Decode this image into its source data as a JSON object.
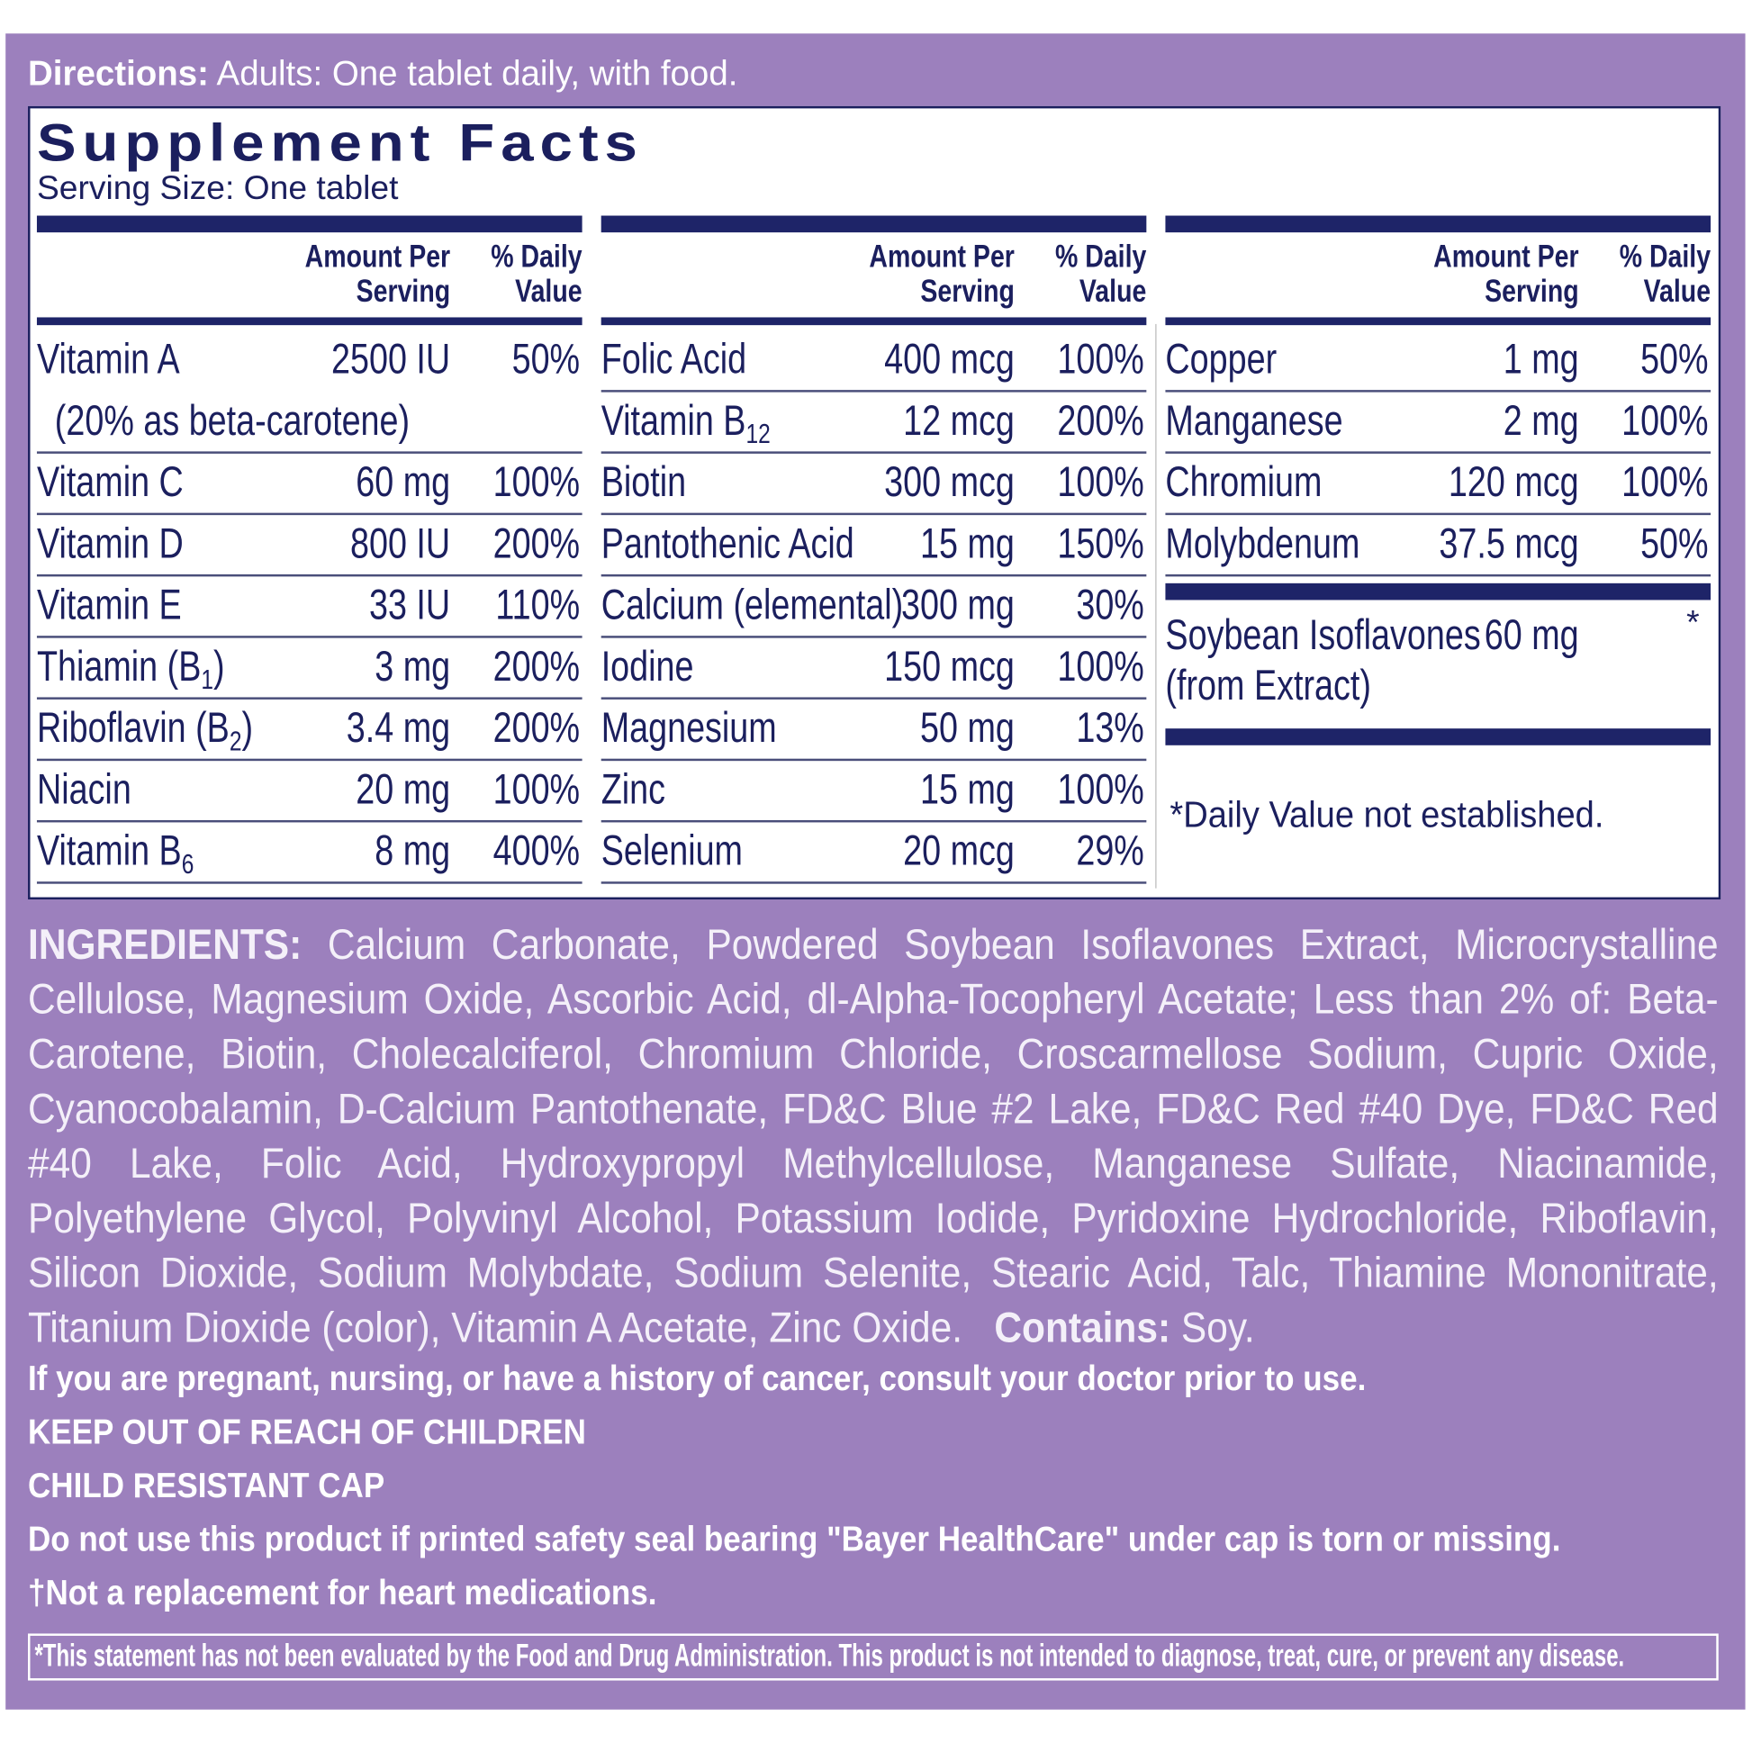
{
  "directions": {
    "label": "Directions:",
    "text": "Adults: One tablet daily, with food."
  },
  "facts": {
    "title": "Supplement Facts",
    "serving_size": "Serving Size: One tablet",
    "columns": [
      {
        "header": {
          "amount": "Amount Per Serving",
          "daily_value": "% Daily Value"
        },
        "rows": [
          {
            "name": "Vitamin A",
            "amount": "2500 IU",
            "daily_value": "50%",
            "note": "(20% as beta-carotene)"
          },
          {
            "name": "Vitamin C",
            "amount": "60 mg",
            "daily_value": "100%"
          },
          {
            "name": "Vitamin D",
            "amount": "800 IU",
            "daily_value": "200%"
          },
          {
            "name": "Vitamin E",
            "amount": "33 IU",
            "daily_value": "110%"
          },
          {
            "name": "Thiamin (B",
            "sub": "1",
            "tail": ")",
            "amount": "3 mg",
            "daily_value": "200%"
          },
          {
            "name": "Riboflavin (B",
            "sub": "2",
            "tail": ")",
            "amount": "3.4 mg",
            "daily_value": "200%"
          },
          {
            "name": "Niacin",
            "amount": "20 mg",
            "daily_value": "100%"
          },
          {
            "name": "Vitamin B",
            "sub": "6",
            "amount": "8 mg",
            "daily_value": "400%"
          }
        ]
      },
      {
        "header": {
          "amount": "Amount Per Serving",
          "daily_value": "% Daily Value"
        },
        "rows": [
          {
            "name": "Folic Acid",
            "amount": "400 mcg",
            "daily_value": "100%"
          },
          {
            "name": "Vitamin B",
            "sub": "12",
            "amount": "12 mcg",
            "daily_value": "200%"
          },
          {
            "name": "Biotin",
            "amount": "300 mcg",
            "daily_value": "100%"
          },
          {
            "name": "Pantothenic Acid",
            "amount": "15 mg",
            "daily_value": "150%"
          },
          {
            "name": "Calcium (elemental)",
            "amount": "300 mg",
            "daily_value": "30%"
          },
          {
            "name": "Iodine",
            "amount": "150 mcg",
            "daily_value": "100%"
          },
          {
            "name": "Magnesium",
            "amount": "50 mg",
            "daily_value": "13%"
          },
          {
            "name": "Zinc",
            "amount": "15 mg",
            "daily_value": "100%"
          },
          {
            "name": "Selenium",
            "amount": "20 mcg",
            "daily_value": "29%"
          }
        ]
      },
      {
        "header": {
          "amount": "Amount Per Serving",
          "daily_value": "% Daily Value"
        },
        "rows": [
          {
            "name": "Copper",
            "amount": "1 mg",
            "daily_value": "50%"
          },
          {
            "name": "Manganese",
            "amount": "2 mg",
            "daily_value": "100%"
          },
          {
            "name": "Chromium",
            "amount": "120 mcg",
            "daily_value": "100%"
          },
          {
            "name": "Molybdenum",
            "amount": "37.5 mcg",
            "daily_value": "50%"
          }
        ]
      }
    ],
    "other": {
      "name": "Soybean Isoflavones",
      "source": "(from Extract)",
      "amount": "60 mg",
      "daily_value": "*"
    },
    "footnote": "*Daily Value not established."
  },
  "ingredients": {
    "label": "INGREDIENTS:",
    "text": "Calcium Carbonate, Powdered Soybean Isoflavones Extract, Microcrystalline Cellulose, Magnesium Oxide, Ascorbic Acid, dl-Alpha-Tocopheryl Acetate; Less than 2% of: Beta-Carotene, Biotin, Cholecalciferol, Chromium Chloride, Croscarmellose Sodium, Cupric Oxide, Cyanocobalamin, D-Calcium Pantothenate, FD&C Blue #2 Lake, FD&C Red #40 Dye, FD&C Red #40 Lake, Folic Acid, Hydroxypropyl Methylcellulose, Manganese Sulfate, Niacinamide, Polyethylene Glycol, Polyvinyl Alcohol, Potassium Iodide, Pyridoxine Hydrochloride, Riboflavin, Silicon Dioxide, Sodium Molybdate, Sodium Selenite, Stearic Acid, Talc, Thiamine Mononitrate, Titanium Dioxide (color), Vitamin A Acetate, Zinc Oxide.",
    "contains_label": "Contains:",
    "contains": "Soy."
  },
  "warnings": [
    "If you are pregnant, nursing, or have a history of cancer, consult your doctor prior to use.",
    "KEEP OUT OF REACH OF CHILDREN",
    "CHILD RESISTANT CAP",
    "Do not use this product if printed safety seal bearing \"Bayer HealthCare\" under cap is torn or missing.",
    "†Not a replacement for heart medications."
  ],
  "disclaimer": "*This statement has not been evaluated by the Food and Drug Administration. This product is not intended to diagnose, treat, cure, or prevent any disease."
}
